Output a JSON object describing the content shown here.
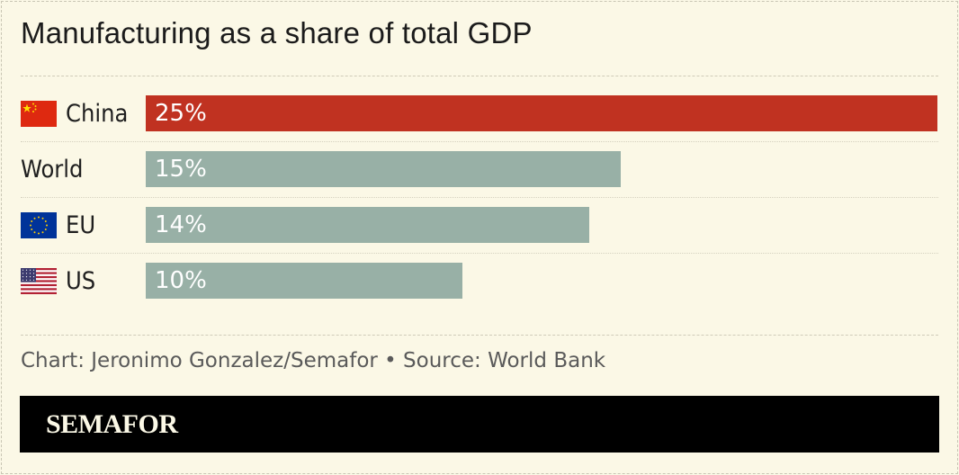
{
  "title": "Manufacturing as a share of total GDP",
  "footer": "Chart: Jeronimo Gonzalez/Semafor • Source: World Bank",
  "brand": "SEMAFOR",
  "colors": {
    "highlight": "#c03221",
    "default": "#98b0a6",
    "background": "#fbf8e6"
  },
  "chart_data": {
    "type": "bar",
    "orientation": "horizontal",
    "title": "Manufacturing as a share of total GDP",
    "categories": [
      "China",
      "World",
      "EU",
      "US"
    ],
    "values": [
      25,
      15,
      14,
      10
    ],
    "labels": [
      "25%",
      "15%",
      "14%",
      "10%"
    ],
    "flags": [
      "china-flag",
      "",
      "eu-flag",
      "us-flag"
    ],
    "highlight": "China",
    "xlim": [
      0,
      25
    ]
  }
}
